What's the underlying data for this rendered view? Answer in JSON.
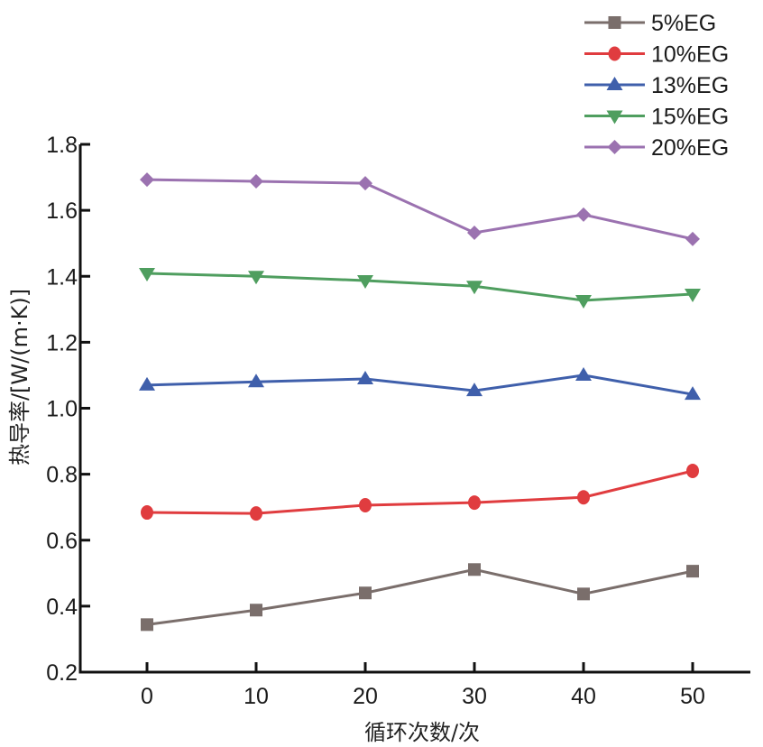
{
  "chart_data": {
    "type": "line",
    "title": "",
    "xlabel": "循环次数/次",
    "ylabel": "热导率/[W/(m·K)]",
    "x": [
      0,
      10,
      20,
      30,
      40,
      50
    ],
    "x_tick_labels": [
      "0",
      "10",
      "20",
      "30",
      "40",
      "50"
    ],
    "xlim": [
      -5,
      55.5
    ],
    "ylim": [
      0.2,
      1.8
    ],
    "y_ticks": [
      0.2,
      0.4,
      0.6,
      0.8,
      1.0,
      1.2,
      1.4,
      1.6,
      1.8
    ],
    "y_tick_labels": [
      "0.2",
      "0.4",
      "0.6",
      "0.8",
      "1.0",
      "1.2",
      "1.4",
      "1.6",
      "1.8"
    ],
    "grid": false,
    "legend_position": "top-right",
    "series": [
      {
        "name": "5%EG",
        "color": "#7a6e6b",
        "marker": "square",
        "values": [
          0.344,
          0.388,
          0.44,
          0.511,
          0.437,
          0.506
        ]
      },
      {
        "name": "10%EG",
        "color": "#e03c3f",
        "marker": "circle",
        "values": [
          0.684,
          0.681,
          0.706,
          0.714,
          0.73,
          0.81
        ]
      },
      {
        "name": "13%EG",
        "color": "#3f5fab",
        "marker": "triangle-up",
        "values": [
          1.07,
          1.08,
          1.089,
          1.053,
          1.1,
          1.042
        ]
      },
      {
        "name": "15%EG",
        "color": "#4f9e5f",
        "marker": "triangle-down",
        "values": [
          1.409,
          1.4,
          1.387,
          1.37,
          1.327,
          1.346
        ]
      },
      {
        "name": "20%EG",
        "color": "#9b72b0",
        "marker": "diamond",
        "values": [
          1.693,
          1.688,
          1.682,
          1.532,
          1.587,
          1.513
        ]
      }
    ]
  }
}
